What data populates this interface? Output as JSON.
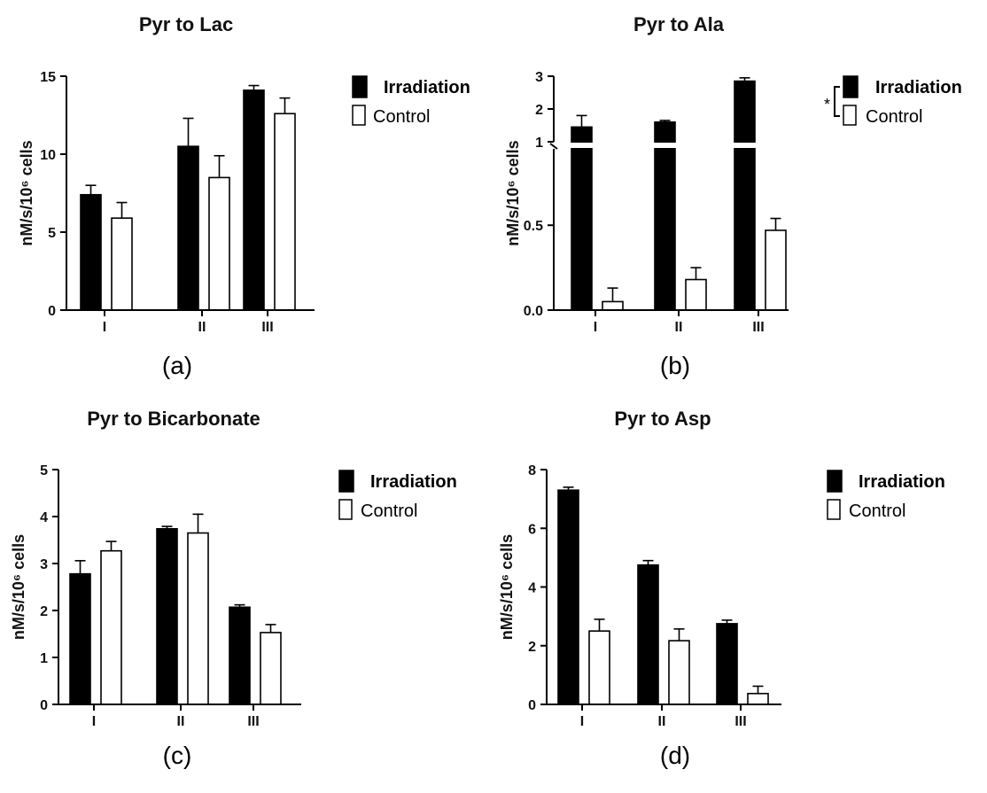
{
  "colors": {
    "irradiation": "#000000",
    "control": "#ffffff"
  },
  "chart_data": [
    {
      "type": "bar",
      "title": "Pyr to Lac",
      "caption": "(a)",
      "ylabel": "nM/s/10⁶ cells",
      "categories": [
        "I",
        "II",
        "III"
      ],
      "ylim": [
        0,
        15
      ],
      "yticks": [
        0,
        5,
        10,
        15
      ],
      "ytick_labels": [
        "0",
        "5",
        "10",
        "15"
      ],
      "legend": {
        "irradiation": "Irradiation",
        "control": "Control",
        "position": "right"
      },
      "series": [
        {
          "name": "Irradiation",
          "values": [
            7.4,
            10.5,
            14.1
          ],
          "errors": [
            0.6,
            1.8,
            0.3
          ]
        },
        {
          "name": "Control",
          "values": [
            5.9,
            8.5,
            12.6
          ],
          "errors": [
            1.0,
            1.4,
            1.0
          ]
        }
      ]
    },
    {
      "type": "bar",
      "title": "Pyr to Ala",
      "caption": "(b)",
      "ylabel": "nM/s/10⁶ cells",
      "categories": [
        "I",
        "II",
        "III"
      ],
      "ylim": [
        0,
        3
      ],
      "axis_break": [
        0.95,
        1.0
      ],
      "yticks": [
        0,
        0.5,
        1,
        2,
        3
      ],
      "ytick_labels": [
        "0.0",
        "0.5",
        "1",
        "2",
        "3"
      ],
      "significance": "*",
      "legend": {
        "irradiation": "Irradiation",
        "control": "Control",
        "position": "right"
      },
      "series": [
        {
          "name": "Irradiation",
          "values": [
            1.45,
            1.6,
            2.85
          ],
          "errors": [
            0.35,
            0.05,
            0.1
          ]
        },
        {
          "name": "Control",
          "values": [
            0.05,
            0.18,
            0.47
          ],
          "errors": [
            0.08,
            0.07,
            0.07
          ]
        }
      ]
    },
    {
      "type": "bar",
      "title": "Pyr to Bicarbonate",
      "caption": "(c)",
      "ylabel": "nM/s/10⁶ cells",
      "categories": [
        "I",
        "II",
        "III"
      ],
      "ylim": [
        0,
        5
      ],
      "yticks": [
        0,
        1,
        2,
        3,
        4,
        5
      ],
      "ytick_labels": [
        "0",
        "1",
        "2",
        "3",
        "4",
        "5"
      ],
      "legend": {
        "irradiation": "Irradiation",
        "control": "Control",
        "position": "right"
      },
      "series": [
        {
          "name": "Irradiation",
          "values": [
            2.78,
            3.74,
            2.07
          ],
          "errors": [
            0.28,
            0.05,
            0.05
          ]
        },
        {
          "name": "Control",
          "values": [
            3.27,
            3.65,
            1.53
          ],
          "errors": [
            0.2,
            0.4,
            0.17
          ]
        }
      ]
    },
    {
      "type": "bar",
      "title": "Pyr to Asp",
      "caption": "(d)",
      "ylabel": "nM/s/10⁶ cells",
      "categories": [
        "I",
        "II",
        "III"
      ],
      "ylim": [
        0,
        8
      ],
      "yticks": [
        0,
        2,
        4,
        6,
        8
      ],
      "ytick_labels": [
        "0",
        "2",
        "4",
        "6",
        "8"
      ],
      "legend": {
        "irradiation": "Irradiation",
        "control": "Control",
        "position": "right"
      },
      "series": [
        {
          "name": "Irradiation",
          "values": [
            7.3,
            4.75,
            2.75
          ],
          "errors": [
            0.1,
            0.15,
            0.12
          ]
        },
        {
          "name": "Control",
          "values": [
            2.5,
            2.17,
            0.37
          ],
          "errors": [
            0.4,
            0.4,
            0.25
          ]
        }
      ]
    }
  ]
}
